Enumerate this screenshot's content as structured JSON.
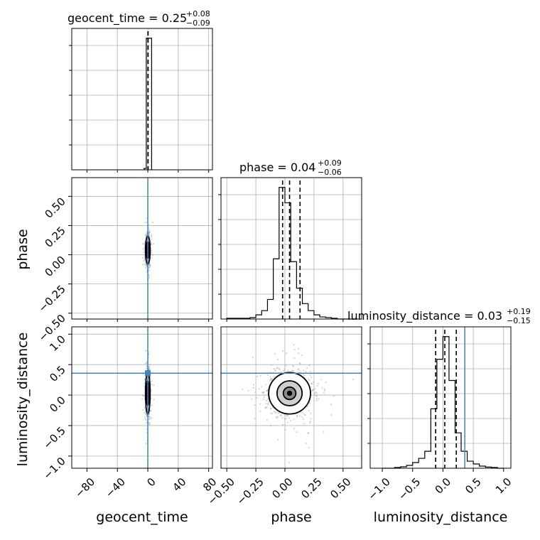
{
  "chart_data": {
    "type": "corner",
    "parameters": [
      "geocent_time",
      "phase",
      "luminosity_distance"
    ],
    "ranges": {
      "geocent_time": [
        -100,
        85
      ],
      "phase": [
        -0.55,
        0.66
      ],
      "luminosity_distance": [
        -1.2,
        1.12
      ]
    },
    "truths": {
      "geocent_time": 0.0,
      "phase": null,
      "luminosity_distance": 0.36
    },
    "ticks": {
      "geocent_time": [
        -80,
        -40,
        0,
        40,
        80
      ],
      "geocent_time_labels": [
        "−80",
        "−40",
        "0",
        "40",
        "80"
      ],
      "phase": [
        -0.5,
        -0.25,
        0.0,
        0.25,
        0.5
      ],
      "phase_labels": [
        "−0.50",
        "−0.25",
        "0.00",
        "0.25",
        "0.50"
      ],
      "luminosity_distance": [
        -1.0,
        -0.5,
        0.0,
        0.5,
        1.0
      ],
      "luminosity_distance_labels": [
        "−1.0",
        "−0.5",
        "0.0",
        "0.5",
        "1.0"
      ]
    },
    "titles": [
      {
        "param": "geocent_time",
        "main": "geocent_time = 0.25",
        "plus": "+0.08",
        "minus": "−0.09"
      },
      {
        "param": "phase",
        "main": "phase = 0.04",
        "plus": "+0.09",
        "minus": "−0.06"
      },
      {
        "param": "luminosity_distance",
        "main": "luminosity_distance = 0.03",
        "plus": "+0.19",
        "minus": "−0.15"
      }
    ],
    "quantiles": {
      "geocent_time": [
        0.16,
        0.25,
        0.33
      ],
      "phase": [
        -0.02,
        0.04,
        0.13
      ],
      "luminosity_distance": [
        -0.12,
        0.03,
        0.22
      ]
    },
    "marginals": {
      "geocent_time": {
        "edges": [
          -5,
          -2,
          5
        ],
        "counts": [
          0.01,
          1.0
        ]
      },
      "phase": {
        "edges": [
          -0.5,
          -0.3,
          -0.25,
          -0.2,
          -0.15,
          -0.1,
          -0.05,
          0.0,
          0.05,
          0.1,
          0.15,
          0.2,
          0.25,
          0.3,
          0.35,
          0.4,
          0.45,
          0.5,
          0.55,
          0.6
        ],
        "counts": [
          0.005,
          0.01,
          0.03,
          0.06,
          0.14,
          0.43,
          0.94,
          0.83,
          0.41,
          0.22,
          0.11,
          0.06,
          0.03,
          0.015,
          0.01,
          0.005,
          0.0,
          0.0,
          0.0
        ]
      },
      "luminosity_distance": {
        "edges": [
          -1.0,
          -0.9,
          -0.8,
          -0.7,
          -0.6,
          -0.5,
          -0.4,
          -0.3,
          -0.2,
          -0.1,
          0.0,
          0.1,
          0.2,
          0.3,
          0.4,
          0.5,
          0.6,
          0.7,
          0.8,
          0.9,
          1.0
        ],
        "counts": [
          0.0,
          0.0,
          0.005,
          0.01,
          0.02,
          0.04,
          0.07,
          0.12,
          0.42,
          0.77,
          0.93,
          0.62,
          0.25,
          0.12,
          0.05,
          0.03,
          0.015,
          0.008,
          0.005,
          0.0
        ]
      }
    },
    "joint": {
      "phase_vs_geocent_time": {
        "center": [
          0.0,
          0.04
        ],
        "sigma": [
          1.5,
          0.06
        ]
      },
      "luminosity_distance_vs_geocent_time": {
        "center": [
          0.0,
          0.03
        ],
        "sigma": [
          1.5,
          0.17
        ]
      },
      "luminosity_distance_vs_phase": {
        "center": [
          0.04,
          0.03
        ],
        "sigma": [
          0.09,
          0.17
        ]
      }
    },
    "grid": true,
    "colors": {
      "histogram": "#000000",
      "truth": "#4682b4",
      "samples": "#a0a0a0",
      "grid": "#b0b0b0"
    }
  }
}
